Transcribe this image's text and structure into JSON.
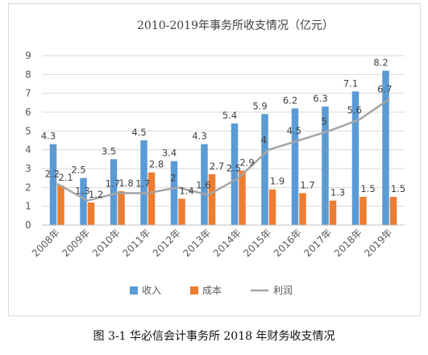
{
  "caption": "图 3-1 华必信会计事务所 2018 年财务收支情况",
  "chart_data": {
    "type": "bar",
    "title": "2010-2019年事务所收支情况（亿元）",
    "categories": [
      "2008年",
      "2009年",
      "2010年",
      "2011年",
      "2012年",
      "2013年",
      "2014年",
      "2015年",
      "2016年",
      "2017年",
      "2018年",
      "2019年"
    ],
    "ylim": [
      0,
      9
    ],
    "yticks": [
      "0",
      "1",
      "2",
      "3",
      "4",
      "5",
      "6",
      "7",
      "8",
      "9"
    ],
    "grid": true,
    "legend_position": "bottom",
    "series": [
      {
        "name": "收入",
        "type": "bar",
        "color": "#5B9BD5",
        "values": [
          4.3,
          2.5,
          3.5,
          4.5,
          3.4,
          4.3,
          5.4,
          5.9,
          6.2,
          6.3,
          7.1,
          8.2
        ]
      },
      {
        "name": "成本",
        "type": "bar",
        "color": "#ED7D31",
        "values": [
          2.1,
          1.2,
          1.8,
          2.8,
          1.4,
          2.7,
          2.9,
          1.9,
          1.7,
          1.3,
          1.5,
          1.5
        ]
      },
      {
        "name": "利润",
        "type": "line",
        "color": "#A5A5A5",
        "values": [
          2.2,
          1.3,
          1.7,
          1.7,
          2.0,
          1.6,
          2.5,
          4.0,
          4.5,
          5.0,
          5.6,
          6.7
        ]
      }
    ]
  }
}
